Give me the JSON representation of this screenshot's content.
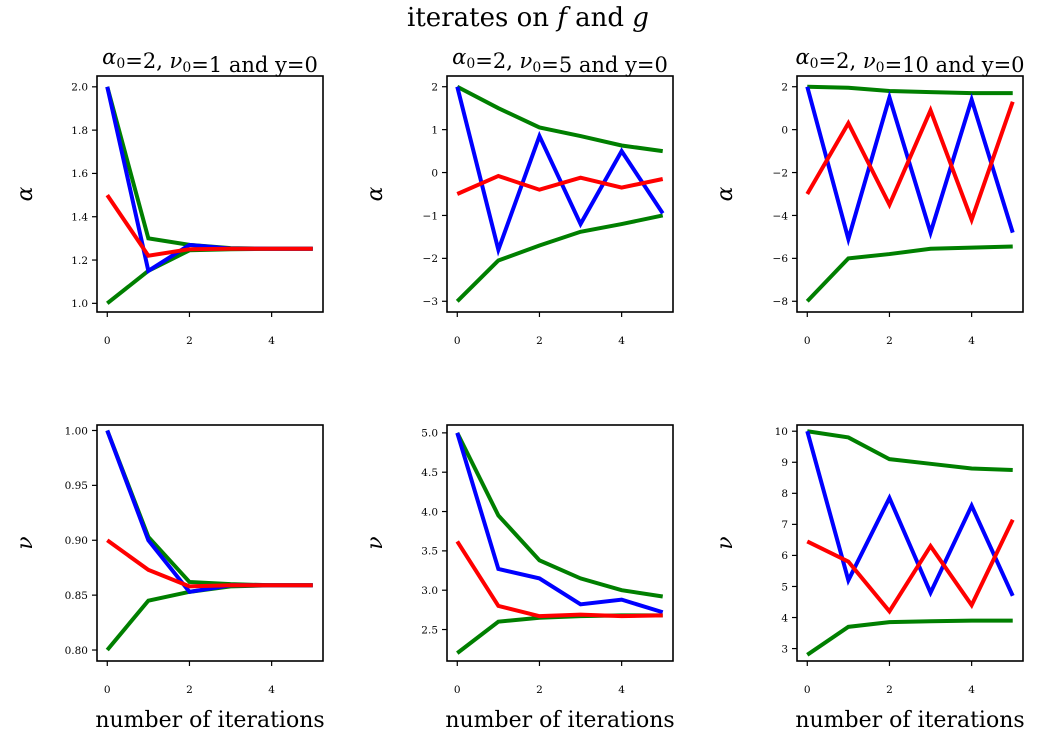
{
  "suptitle": "iterates on f and g",
  "suptitle_parts": {
    "prefix": "iterates on ",
    "f": "f",
    "mid": " and ",
    "g": "g"
  },
  "colors": {
    "green": "#007f00",
    "blue": "#0000ff",
    "red": "#ff0000"
  },
  "chart_data": [
    {
      "type": "line",
      "title": "α0=2, ν0=1 and y=0",
      "title_parts": {
        "a": "α",
        "a_sub": "0",
        "mid1": "=2, ",
        "n": "ν",
        "n_sub": "0",
        "tail": "=1 and y=0"
      },
      "ylabel": "α",
      "xlabel": "",
      "xlim": [
        -0.25,
        5.25
      ],
      "ylim": [
        0.96,
        2.05
      ],
      "xticks": [
        0,
        2,
        4
      ],
      "yticks": [
        1.0,
        1.2,
        1.4,
        1.6,
        1.8,
        2.0
      ],
      "ytick_labels": [
        "1.0",
        "1.2",
        "1.4",
        "1.6",
        "1.8",
        "2.0"
      ],
      "x": [
        0,
        1,
        2,
        3,
        4,
        5
      ],
      "series": [
        {
          "color": "#007f00",
          "values": [
            2.0,
            1.3,
            1.27,
            1.255,
            1.252,
            1.252
          ]
        },
        {
          "color": "#007f00",
          "values": [
            1.0,
            1.15,
            1.245,
            1.25,
            1.252,
            1.252
          ]
        },
        {
          "color": "#0000ff",
          "values": [
            2.0,
            1.15,
            1.27,
            1.253,
            1.252,
            1.252
          ]
        },
        {
          "color": "#ff0000",
          "values": [
            1.5,
            1.22,
            1.25,
            1.252,
            1.252,
            1.252
          ]
        }
      ]
    },
    {
      "type": "line",
      "title": "α0=2, ν0=5 and y=0",
      "title_parts": {
        "a": "α",
        "a_sub": "0",
        "mid1": "=2, ",
        "n": "ν",
        "n_sub": "0",
        "tail": "=5 and y=0"
      },
      "ylabel": "α",
      "xlabel": "",
      "xlim": [
        -0.25,
        5.25
      ],
      "ylim": [
        -3.25,
        2.25
      ],
      "xticks": [
        0,
        2,
        4
      ],
      "yticks": [
        -3,
        -2,
        -1,
        0,
        1,
        2
      ],
      "ytick_labels": [
        "−3",
        "−2",
        "−1",
        "0",
        "1",
        "2"
      ],
      "x": [
        0,
        1,
        2,
        3,
        4,
        5
      ],
      "series": [
        {
          "color": "#007f00",
          "values": [
            2.0,
            1.5,
            1.05,
            0.85,
            0.63,
            0.5
          ]
        },
        {
          "color": "#007f00",
          "values": [
            -3.0,
            -2.05,
            -1.7,
            -1.38,
            -1.2,
            -1.0
          ]
        },
        {
          "color": "#0000ff",
          "values": [
            2.0,
            -1.8,
            0.85,
            -1.2,
            0.5,
            -0.95
          ]
        },
        {
          "color": "#ff0000",
          "values": [
            -0.5,
            -0.08,
            -0.4,
            -0.12,
            -0.35,
            -0.15
          ]
        }
      ]
    },
    {
      "type": "line",
      "title": "α0=2, ν0=10 and y=0",
      "title_parts": {
        "a": "α",
        "a_sub": "0",
        "mid1": "=2, ",
        "n": "ν",
        "n_sub": "0",
        "tail": "=10 and y=0"
      },
      "ylabel": "α",
      "xlabel": "",
      "xlim": [
        -0.25,
        5.25
      ],
      "ylim": [
        -8.5,
        2.5
      ],
      "xticks": [
        0,
        2,
        4
      ],
      "yticks": [
        -8,
        -6,
        -4,
        -2,
        0,
        2
      ],
      "ytick_labels": [
        "−8",
        "−6",
        "−4",
        "−2",
        "0",
        "2"
      ],
      "x": [
        0,
        1,
        2,
        3,
        4,
        5
      ],
      "series": [
        {
          "color": "#007f00",
          "values": [
            2.0,
            1.95,
            1.8,
            1.75,
            1.7,
            1.7
          ]
        },
        {
          "color": "#007f00",
          "values": [
            -8.0,
            -6.0,
            -5.8,
            -5.55,
            -5.5,
            -5.45
          ]
        },
        {
          "color": "#0000ff",
          "values": [
            2.0,
            -5.1,
            1.5,
            -4.8,
            1.4,
            -4.8
          ]
        },
        {
          "color": "#ff0000",
          "values": [
            -3.0,
            0.3,
            -3.5,
            0.9,
            -4.2,
            1.3
          ]
        }
      ]
    },
    {
      "type": "line",
      "title": "",
      "ylabel": "ν",
      "xlabel": "number of iterations",
      "xlim": [
        -0.25,
        5.25
      ],
      "ylim": [
        0.79,
        1.005
      ],
      "xticks": [
        0,
        2,
        4
      ],
      "yticks": [
        0.8,
        0.85,
        0.9,
        0.95,
        1.0
      ],
      "ytick_labels": [
        "0.80",
        "0.85",
        "0.90",
        "0.95",
        "1.00"
      ],
      "x": [
        0,
        1,
        2,
        3,
        4,
        5
      ],
      "series": [
        {
          "color": "#007f00",
          "values": [
            1.0,
            0.903,
            0.862,
            0.86,
            0.859,
            0.859
          ]
        },
        {
          "color": "#007f00",
          "values": [
            0.8,
            0.845,
            0.853,
            0.858,
            0.859,
            0.859
          ]
        },
        {
          "color": "#0000ff",
          "values": [
            1.0,
            0.9,
            0.853,
            0.859,
            0.859,
            0.859
          ]
        },
        {
          "color": "#ff0000",
          "values": [
            0.9,
            0.873,
            0.858,
            0.859,
            0.859,
            0.859
          ]
        }
      ]
    },
    {
      "type": "line",
      "title": "",
      "ylabel": "ν",
      "xlabel": "number of iterations",
      "xlim": [
        -0.25,
        5.25
      ],
      "ylim": [
        2.1,
        5.1
      ],
      "xticks": [
        0,
        2,
        4
      ],
      "yticks": [
        2.5,
        3.0,
        3.5,
        4.0,
        4.5,
        5.0
      ],
      "ytick_labels": [
        "2.5",
        "3.0",
        "3.5",
        "4.0",
        "4.5",
        "5.0"
      ],
      "x": [
        0,
        1,
        2,
        3,
        4,
        5
      ],
      "series": [
        {
          "color": "#007f00",
          "values": [
            5.0,
            3.95,
            3.38,
            3.15,
            3.0,
            2.92
          ]
        },
        {
          "color": "#007f00",
          "values": [
            2.2,
            2.6,
            2.65,
            2.67,
            2.68,
            2.68
          ]
        },
        {
          "color": "#0000ff",
          "values": [
            5.0,
            3.27,
            3.15,
            2.82,
            2.88,
            2.72
          ]
        },
        {
          "color": "#ff0000",
          "values": [
            3.62,
            2.8,
            2.67,
            2.69,
            2.67,
            2.68
          ]
        }
      ]
    },
    {
      "type": "line",
      "title": "",
      "ylabel": "ν",
      "xlabel": "number of iterations",
      "xlim": [
        -0.25,
        5.25
      ],
      "ylim": [
        2.6,
        10.2
      ],
      "xticks": [
        0,
        2,
        4
      ],
      "yticks": [
        3,
        4,
        5,
        6,
        7,
        8,
        9,
        10
      ],
      "ytick_labels": [
        "3",
        "4",
        "5",
        "6",
        "7",
        "8",
        "9",
        "10"
      ],
      "x": [
        0,
        1,
        2,
        3,
        4,
        5
      ],
      "series": [
        {
          "color": "#007f00",
          "values": [
            10.0,
            9.8,
            9.1,
            8.95,
            8.8,
            8.75
          ]
        },
        {
          "color": "#007f00",
          "values": [
            2.8,
            3.7,
            3.85,
            3.88,
            3.9,
            3.9
          ]
        },
        {
          "color": "#0000ff",
          "values": [
            10.0,
            5.2,
            7.85,
            4.8,
            7.6,
            4.7
          ]
        },
        {
          "color": "#ff0000",
          "values": [
            6.45,
            5.8,
            4.2,
            6.3,
            4.4,
            7.15
          ]
        }
      ]
    }
  ]
}
